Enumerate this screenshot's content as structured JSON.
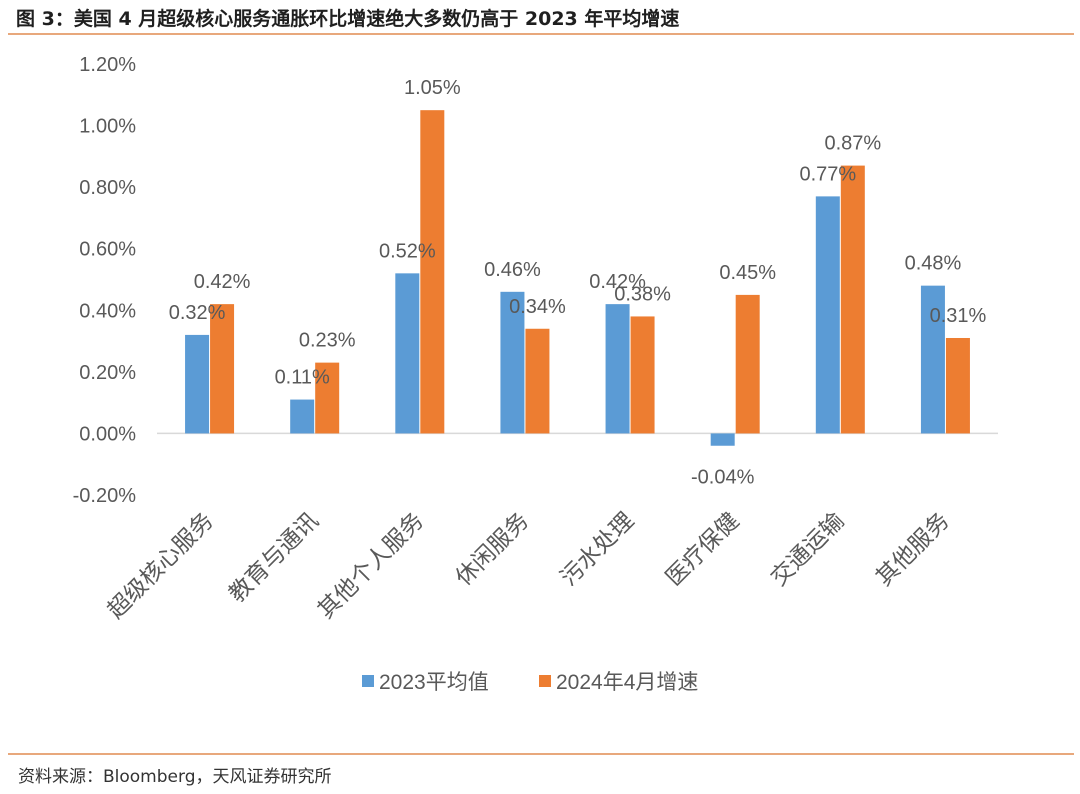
{
  "figure": {
    "title": "图 3：美国 4 月超级核心服务通胀环比增速绝大多数仍高于 2023 年平均增速",
    "source": "资料来源：Bloomberg，天风证券研究所"
  },
  "chart_data": {
    "type": "bar",
    "categories": [
      "超级核心服务",
      "教育与通讯",
      "其他个人服务",
      "休闲服务",
      "污水处理",
      "医疗保健",
      "交通运输",
      "其他服务"
    ],
    "series": [
      {
        "name": "2023平均值",
        "color": "#5b9bd5",
        "values": [
          0.32,
          0.11,
          0.52,
          0.46,
          0.42,
          -0.04,
          0.77,
          0.48
        ],
        "labels": [
          "0.32%",
          "0.11%",
          "0.52%",
          "0.46%",
          "0.42%",
          "-0.04%",
          "0.77%",
          "0.48%"
        ]
      },
      {
        "name": "2024年4月增速",
        "color": "#ed7d31",
        "values": [
          0.42,
          0.23,
          1.05,
          0.34,
          0.38,
          0.45,
          0.87,
          0.31
        ],
        "labels": [
          "0.42%",
          "0.23%",
          "1.05%",
          "0.34%",
          "0.38%",
          "0.45%",
          "0.87%",
          "0.31%"
        ]
      }
    ],
    "y_ticks": [
      "1.20%",
      "1.00%",
      "0.80%",
      "0.60%",
      "0.40%",
      "0.20%",
      "0.00%",
      "-0.20%"
    ],
    "y_tick_values": [
      1.2,
      1.0,
      0.8,
      0.6,
      0.4,
      0.2,
      0.0,
      -0.2
    ],
    "ylim": [
      -0.2,
      1.2
    ],
    "grid": false,
    "legend_position": "bottom"
  }
}
